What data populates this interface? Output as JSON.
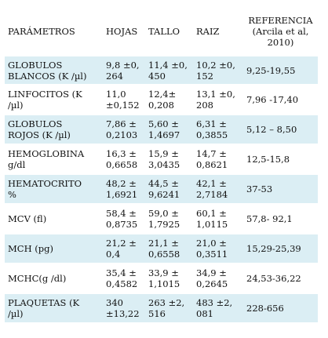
{
  "table": {
    "headers": [
      "PARÁMETROS",
      "HOJAS",
      "TALLO",
      "RAIZ",
      "REFERENCIA\n (Arcila et al,\n2010)"
    ],
    "rows": [
      [
        "GLOBULOS\nBLANCOS (K /µl)",
        "9,8 ±0,\n264",
        "11,4 ±0,\n450",
        "10,2 ±0,\n152",
        "9,25-19,55"
      ],
      [
        "LINFOCITOS (K\n/µl)",
        "11,0\n±0,152",
        "12,4±\n0,208",
        "13,1 ±0,\n208",
        "7,96 -17,40"
      ],
      [
        "GLOBULOS\nROJOS (K /µl)",
        "7,86 ±\n0,2103",
        "5,60 ±\n1,4697",
        "6,31 ±\n0,3855",
        "5,12 – 8,50"
      ],
      [
        "HEMOGLOBINA\ng/dl",
        "16,3 ±\n0,6658",
        "15,9 ±\n3,0435",
        "14,7 ±\n0,8621",
        "12,5-15,8"
      ],
      [
        "HEMATOCRITO\n%",
        "48,2 ±\n1,6921",
        "44,5 ±\n9,6241",
        "42,1 ±\n2,7184",
        "37-53"
      ],
      [
        "MCV (fl)",
        "58,4 ±\n0,8735",
        "59,0 ±\n1,7925",
        "60,1 ±\n1,0115",
        "57,8- 92,1"
      ],
      [
        "MCH (pg)",
        "21,2 ±\n0,4",
        "21,1 ±\n0,6558",
        "21,0 ±\n0,3511",
        "15,29-25,39"
      ],
      [
        "MCHC(g /dl)",
        "35,4 ±\n0,4582",
        "33,9 ±\n1,1015",
        "34,9 ±\n0,2645",
        "24,53-36,22"
      ],
      [
        "PLAQUETAS (K\n/µl)",
        "340\n±13,22",
        "263 ±2,\n516",
        "483 ±2,\n081",
        "228-656"
      ]
    ]
  },
  "colors": {
    "row_alt": "#dbeef4",
    "row_plain": "#ffffff",
    "text": "#111111"
  }
}
